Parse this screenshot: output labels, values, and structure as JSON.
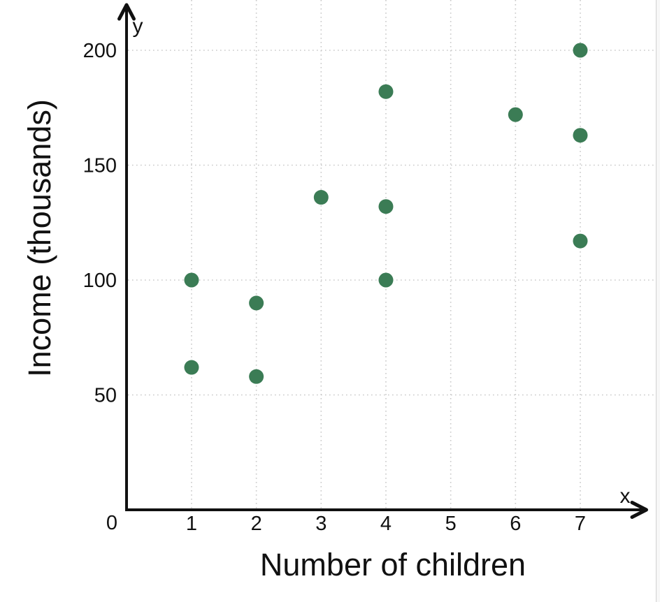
{
  "chart_data": {
    "type": "scatter",
    "title": "",
    "xlabel": "Number of children",
    "ylabel": "Income (thousands)",
    "x_axis_letter": "x",
    "y_axis_letter": "y",
    "origin_label": "0",
    "x_ticks": [
      1,
      2,
      3,
      4,
      5,
      6,
      7
    ],
    "y_ticks": [
      50,
      100,
      150,
      200
    ],
    "xlim": [
      0,
      8
    ],
    "ylim": [
      0,
      220
    ],
    "grid": "dotted",
    "legend_position": "none",
    "point_color": "#3b7c55",
    "points": [
      {
        "x": 1,
        "y": 62
      },
      {
        "x": 1,
        "y": 100
      },
      {
        "x": 2,
        "y": 58
      },
      {
        "x": 2,
        "y": 90
      },
      {
        "x": 3,
        "y": 136
      },
      {
        "x": 4,
        "y": 100
      },
      {
        "x": 4,
        "y": 132
      },
      {
        "x": 4,
        "y": 182
      },
      {
        "x": 6,
        "y": 172
      },
      {
        "x": 7,
        "y": 117
      },
      {
        "x": 7,
        "y": 163
      },
      {
        "x": 7,
        "y": 200
      }
    ]
  }
}
